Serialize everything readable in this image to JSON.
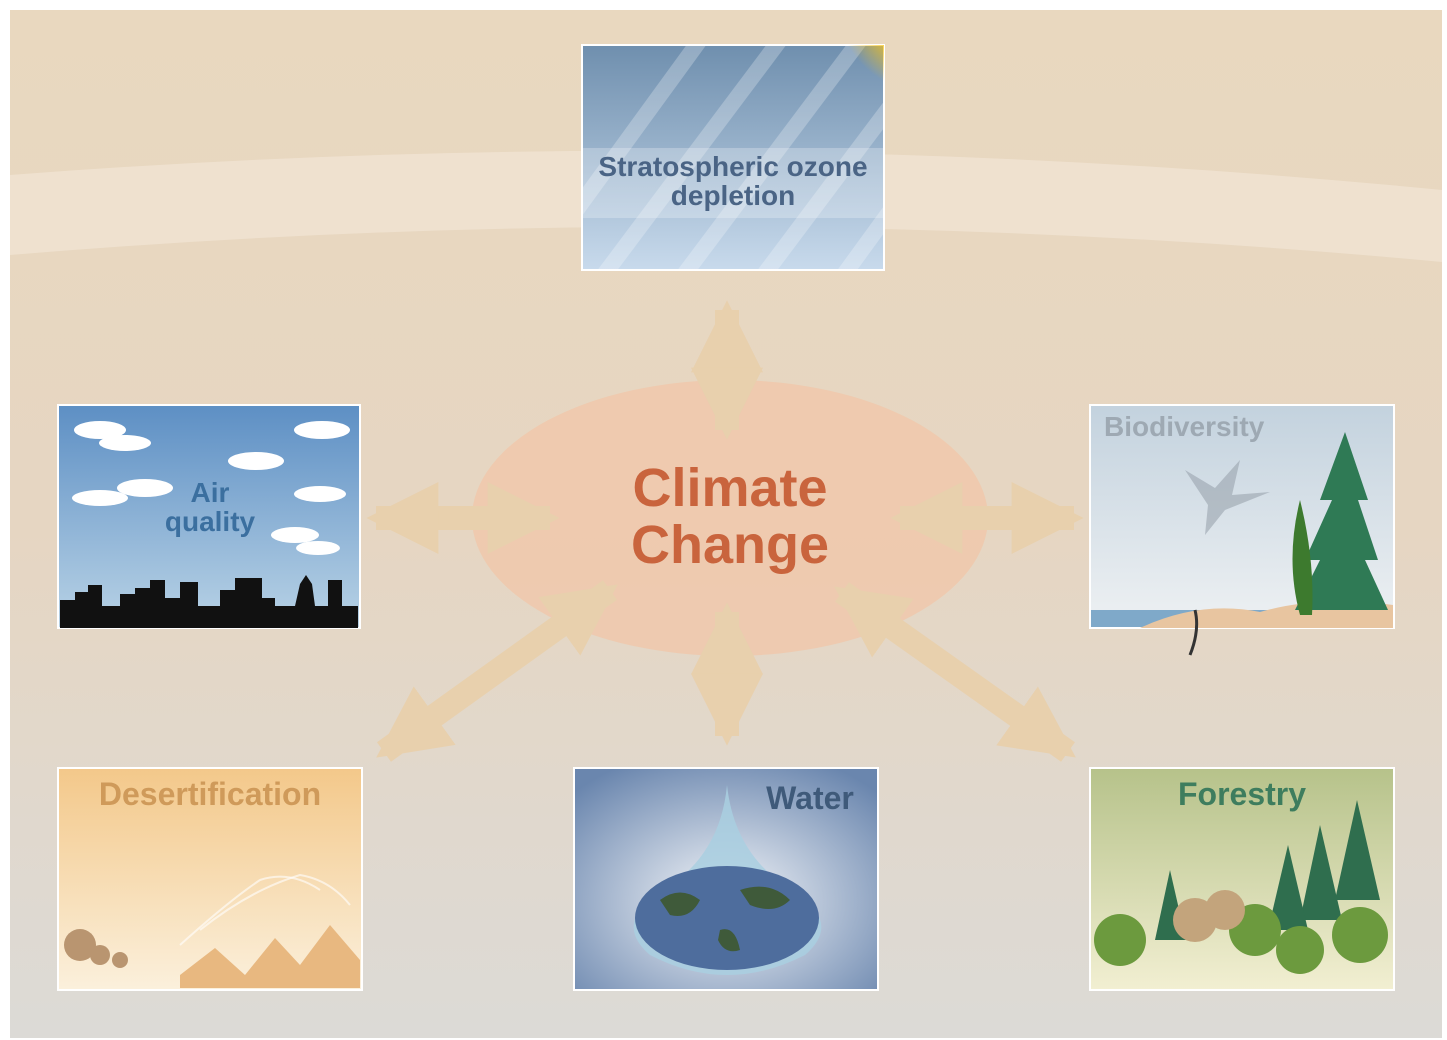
{
  "center": {
    "label": "Climate Change"
  },
  "nodes": [
    {
      "label": "Stratospheric ozone depletion"
    },
    {
      "label": "Air quality"
    },
    {
      "label": "Biodiversity"
    },
    {
      "label": "Desertification"
    },
    {
      "label": "Water"
    },
    {
      "label": "Forestry"
    }
  ]
}
